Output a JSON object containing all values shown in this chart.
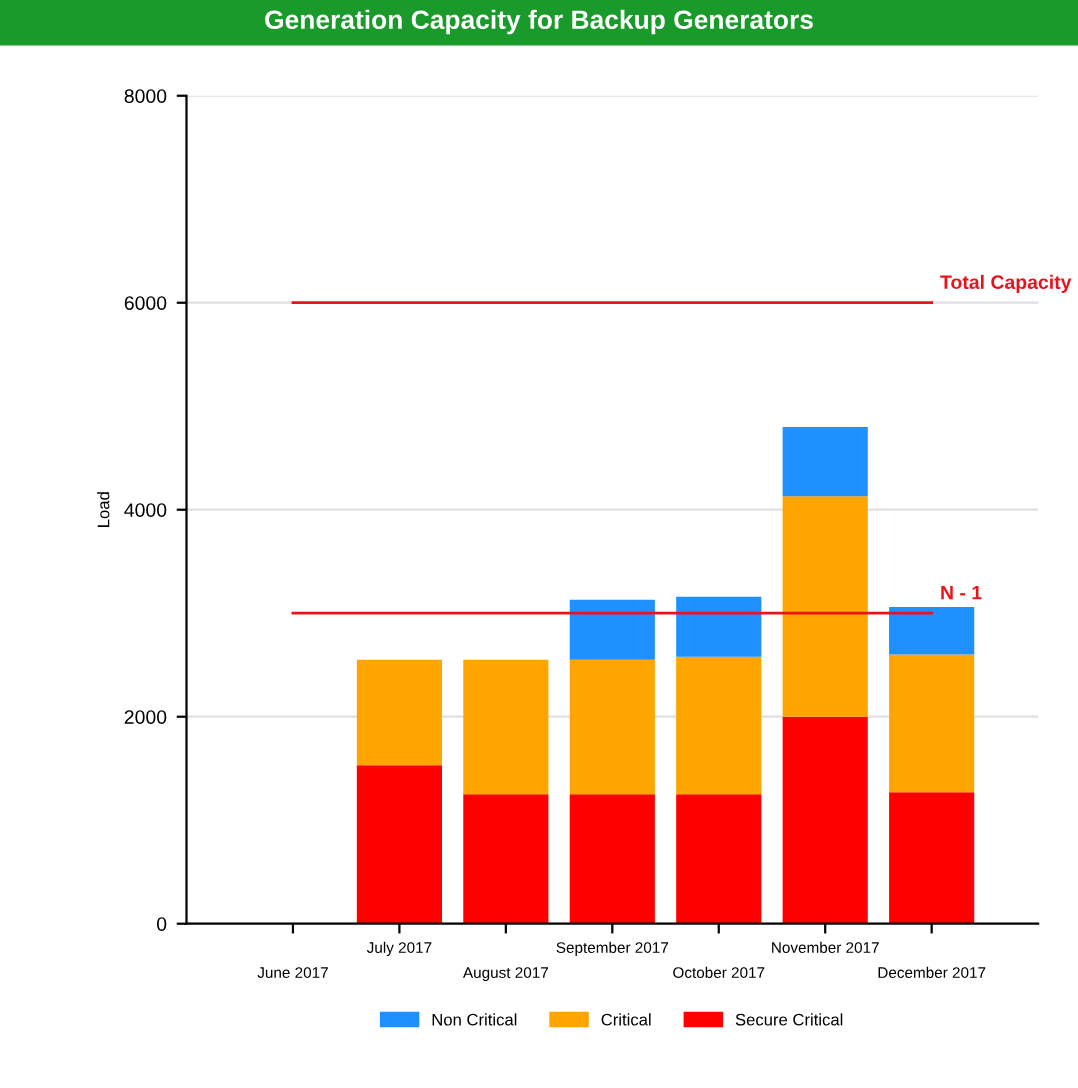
{
  "chart_data": {
    "type": "bar",
    "title": "Generation Capacity for Backup Generators",
    "ylabel": "Load",
    "categories": [
      "June 2017",
      "July 2017",
      "August 2017",
      "September 2017",
      "October 2017",
      "November 2017",
      "December 2017"
    ],
    "stacked": true,
    "series": [
      {
        "name": "Secure Critical",
        "color": "#ff0000",
        "values": [
          null,
          1530,
          1250,
          1250,
          1250,
          2000,
          1270
        ]
      },
      {
        "name": "Critical",
        "color": "#ffa500",
        "values": [
          null,
          1020,
          1300,
          1300,
          1330,
          2130,
          1330
        ]
      },
      {
        "name": "Non Critical",
        "color": "#1e90ff",
        "values": [
          null,
          null,
          null,
          580,
          580,
          670,
          460
        ]
      }
    ],
    "ylim": [
      0,
      8000
    ],
    "yticks": [
      0,
      2000,
      4000,
      6000,
      8000
    ],
    "grid": "y",
    "legend": "bottom",
    "ref_lines": [
      {
        "axis": "y",
        "value": 6000,
        "label": "Total Capacity",
        "color": "#e8141b"
      },
      {
        "axis": "y",
        "value": 3000,
        "label": "N - 1",
        "color": "#e8141b"
      }
    ]
  }
}
